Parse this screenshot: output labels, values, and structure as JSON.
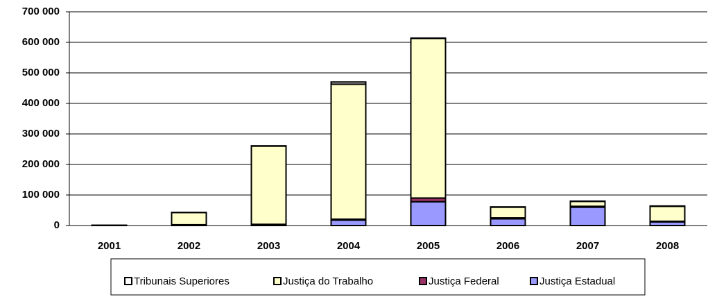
{
  "chart_data": {
    "type": "stacked_bar",
    "categories": [
      "2001",
      "2002",
      "2003",
      "2004",
      "2005",
      "2006",
      "2007",
      "2008"
    ],
    "series": [
      {
        "name": "Justiça Estadual",
        "color": "#9999ff",
        "values": [
          500,
          2000,
          3000,
          18000,
          78000,
          22000,
          60000,
          12000
        ]
      },
      {
        "name": "Justiça Federal",
        "color": "#993366",
        "values": [
          0,
          500,
          1000,
          3000,
          12000,
          3000,
          3000,
          2000
        ]
      },
      {
        "name": "Justiça do Trabalho",
        "color": "#ffffcc",
        "values": [
          500,
          40000,
          256000,
          442000,
          523000,
          35000,
          16000,
          49000
        ]
      },
      {
        "name": "Tribunais Superiores",
        "color": "#ffffff",
        "values": [
          0,
          500,
          1000,
          7000,
          1000,
          1000,
          1000,
          1000
        ]
      }
    ],
    "legend_order": [
      3,
      2,
      1,
      0
    ],
    "ylim": [
      0,
      700000
    ],
    "yticks": [
      0,
      {
        "value": 100000,
        "label": "100 000"
      },
      {
        "value": 200000,
        "label": "200 000"
      },
      {
        "value": 300000,
        "label": "300 000"
      },
      {
        "value": 400000,
        "label": "400 000"
      },
      {
        "value": 500000,
        "label": "500 000"
      },
      {
        "value": 600000,
        "label": "600 000"
      },
      {
        "value": 700000,
        "label": "700 000"
      }
    ],
    "grid": true,
    "legend": "bottom"
  }
}
